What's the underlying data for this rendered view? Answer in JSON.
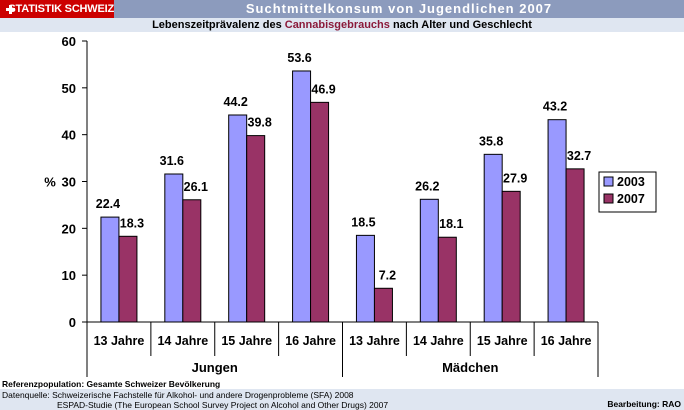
{
  "header": {
    "brand_label": "STATISTIK SCHWEIZ",
    "title": "Suchtmittelkonsum von Jugendlichen 2007"
  },
  "subtitle": {
    "before": "Lebenszeitprävalenz des ",
    "highlight": "Cannabisgebrauchs",
    "after": " nach Alter und Geschlecht"
  },
  "colors": {
    "header_bg": "#8c9bbd",
    "brand_bg": "#cc0000",
    "band_bg": "#dfe6f1",
    "highlight": "#8b1a3a",
    "series_2003": "#9999ff",
    "series_2007": "#993366"
  },
  "chart_data": {
    "type": "bar",
    "ylabel": "%",
    "ylim": [
      0,
      60
    ],
    "yticks": [
      0,
      10,
      20,
      30,
      40,
      50,
      60
    ],
    "grid": false,
    "legend_position": "right",
    "groups": [
      {
        "label": "Jungen",
        "categories": [
          "13 Jahre",
          "14 Jahre",
          "15 Jahre",
          "16 Jahre"
        ]
      },
      {
        "label": "Mädchen",
        "categories": [
          "13 Jahre",
          "14 Jahre",
          "15 Jahre",
          "16 Jahre"
        ]
      }
    ],
    "series": [
      {
        "name": "2003",
        "values": [
          22.4,
          31.6,
          44.2,
          53.6,
          18.5,
          26.2,
          35.8,
          43.2
        ]
      },
      {
        "name": "2007",
        "values": [
          18.3,
          26.1,
          39.8,
          46.9,
          7.2,
          18.1,
          27.9,
          32.7
        ]
      }
    ],
    "value_labels": [
      [
        "22.4",
        "31.6",
        "44.2",
        "53.6",
        "18.5",
        "26.2",
        "35.8",
        "43.2"
      ],
      [
        "18.3",
        "26.1",
        "39.8",
        "46.9",
        "7.2",
        "18.1",
        "27.9",
        "32.7"
      ]
    ]
  },
  "footer": {
    "reference": "Referenzpopulation: Gesamte Schweizer Bevölkerung",
    "source_line1": "Datenquelle: Schweizerische Fachstelle für Alkohol- und andere Drogenprobleme (SFA) 2008",
    "source_line2": "ESPAD-Studie (The European School Survey Project on Alcohol and Other Drugs) 2007",
    "credit": "Bearbeitung: RAO"
  }
}
